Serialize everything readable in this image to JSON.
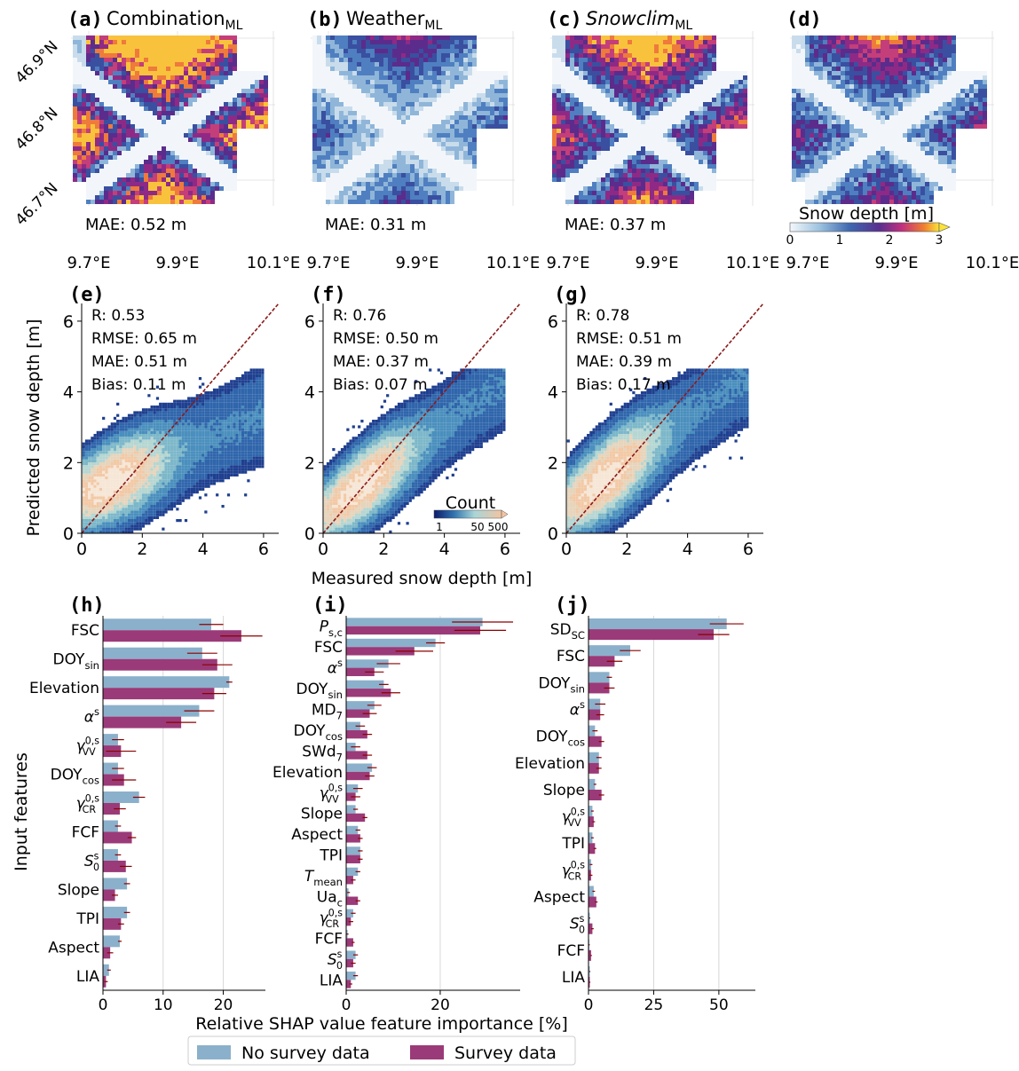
{
  "colors": {
    "no_survey": "#8bb0cb",
    "survey": "#9b3a78",
    "errbar": "#8b0000",
    "identity_line": "#8b1a1a"
  },
  "maps": {
    "lat_ticks": [
      "46.9°N",
      "46.8°N",
      "46.7°N"
    ],
    "lon_ticks": [
      "9.7°E",
      "9.9°E",
      "10.1°E"
    ],
    "colorbar": {
      "label": "Snow depth [m]",
      "ticks": [
        "0",
        "1",
        "2",
        "3"
      ],
      "colormap": "blue-purple-orange-yellow",
      "range": [
        0,
        3
      ]
    },
    "panels": [
      {
        "letter": "(a)",
        "title_main": "Combination",
        "title_sub": "ML",
        "italic": false,
        "mae": "MAE: 0.52 m",
        "intensity": 1.0
      },
      {
        "letter": "(b)",
        "title_main": "Weather",
        "title_sub": "ML",
        "italic": false,
        "mae": "MAE: 0.31 m",
        "intensity": 0.45
      },
      {
        "letter": "(c)",
        "title_main": "Snowclim",
        "title_sub": "ML",
        "italic": true,
        "mae": "MAE: 0.37 m",
        "intensity": 0.8
      },
      {
        "letter": "(d)",
        "title_main": "",
        "title_sub": "",
        "italic": false,
        "mae": "",
        "intensity": 0.6
      }
    ]
  },
  "chart_data": [
    {
      "type": "heatmap",
      "panels": [
        {
          "letter": "(e)",
          "stats": [
            "R: 0.53",
            "RMSE: 0.65 m",
            "MAE: 0.51 m",
            "Bias: 0.11 m"
          ]
        },
        {
          "letter": "(f)",
          "stats": [
            "R: 0.76",
            "RMSE: 0.50 m",
            "MAE: 0.37 m",
            "Bias: 0.07 m"
          ]
        },
        {
          "letter": "(g)",
          "stats": [
            "R: 0.78",
            "RMSE: 0.51 m",
            "MAE: 0.39 m",
            "Bias: 0.17 m"
          ]
        }
      ],
      "xlabel": "Measured snow depth [m]",
      "ylabel": "Predicted snow depth [m]",
      "xlim": [
        0,
        6.5
      ],
      "ylim": [
        0,
        6.5
      ],
      "ticks": [
        0,
        2,
        4,
        6
      ],
      "colorbar": {
        "label": "Count",
        "ticks": [
          "1",
          "50",
          "500"
        ]
      }
    },
    {
      "type": "bar",
      "orientation": "horizontal",
      "xlabel": "Relative SHAP value feature importance [%]",
      "ylabel": "Input features",
      "legend": [
        "No survey data",
        "Survey data"
      ],
      "panels": [
        {
          "letter": "(h)",
          "xlim": [
            0,
            27
          ],
          "xticks": [
            0,
            10,
            20
          ],
          "features": [
            {
              "label": "FSC",
              "no_survey": 18,
              "survey": 23,
              "err_no": 2,
              "err_s": 3.5
            },
            {
              "label": "DOY_sin",
              "no_survey": 16.5,
              "survey": 19,
              "err_no": 2.5,
              "err_s": 2.5
            },
            {
              "label": "Elevation",
              "no_survey": 21,
              "survey": 18.5,
              "err_no": 0.5,
              "err_s": 2
            },
            {
              "label": "α^s",
              "no_survey": 16,
              "survey": 13,
              "err_no": 2.5,
              "err_s": 2.5
            },
            {
              "label": "γ_VV^0,s",
              "no_survey": 2.5,
              "survey": 3,
              "err_no": 1,
              "err_s": 2.5
            },
            {
              "label": "DOY_cos",
              "no_survey": 2.5,
              "survey": 3.5,
              "err_no": 1,
              "err_s": 2
            },
            {
              "label": "γ_CR^0,s",
              "no_survey": 6,
              "survey": 2.8,
              "err_no": 1,
              "err_s": 1
            },
            {
              "label": "FCF",
              "no_survey": 2.5,
              "survey": 4.8,
              "err_no": 0.5,
              "err_s": 0.7
            },
            {
              "label": "S_0^s",
              "no_survey": 2.5,
              "survey": 3.8,
              "err_no": 0.5,
              "err_s": 1
            },
            {
              "label": "Slope",
              "no_survey": 4,
              "survey": 2,
              "err_no": 0.5,
              "err_s": 0.5
            },
            {
              "label": "TPI",
              "no_survey": 4,
              "survey": 3,
              "err_no": 0.5,
              "err_s": 0.5
            },
            {
              "label": "Aspect",
              "no_survey": 2.8,
              "survey": 1.2,
              "err_no": 0.3,
              "err_s": 0.5
            },
            {
              "label": "LIA",
              "no_survey": 1,
              "survey": 0.5,
              "err_no": 0.3,
              "err_s": 0.3
            }
          ]
        },
        {
          "letter": "(i)",
          "xlim": [
            0,
            37
          ],
          "xticks": [
            0,
            20
          ],
          "features": [
            {
              "label": "P_s,c",
              "no_survey": 29,
              "survey": 28.5,
              "err_no": 6.5,
              "err_s": 5.5
            },
            {
              "label": "FSC",
              "no_survey": 19,
              "survey": 14.5,
              "err_no": 2,
              "err_s": 4
            },
            {
              "label": "α^s",
              "no_survey": 9,
              "survey": 6,
              "err_no": 2.5,
              "err_s": 2
            },
            {
              "label": "DOY_sin",
              "no_survey": 8,
              "survey": 9.5,
              "err_no": 1,
              "err_s": 2
            },
            {
              "label": "MD_7",
              "no_survey": 6,
              "survey": 5,
              "err_no": 1.5,
              "err_s": 1.5
            },
            {
              "label": "DOY_cos",
              "no_survey": 3,
              "survey": 4.5,
              "err_no": 1,
              "err_s": 1
            },
            {
              "label": "SWd_7",
              "no_survey": 2,
              "survey": 4.5,
              "err_no": 1,
              "err_s": 1
            },
            {
              "label": "Elevation",
              "no_survey": 5.5,
              "survey": 5,
              "err_no": 1,
              "err_s": 1
            },
            {
              "label": "γ_VV^0,s",
              "no_survey": 2.5,
              "survey": 2,
              "err_no": 1,
              "err_s": 1
            },
            {
              "label": "Slope",
              "no_survey": 2,
              "survey": 4,
              "err_no": 0.5,
              "err_s": 0.5
            },
            {
              "label": "Aspect",
              "no_survey": 2.5,
              "survey": 3,
              "err_no": 0.5,
              "err_s": 0.5
            },
            {
              "label": "TPI",
              "no_survey": 3,
              "survey": 3,
              "err_no": 0.5,
              "err_s": 0.5
            },
            {
              "label": "T_mean",
              "no_survey": 2.5,
              "survey": 1.5,
              "err_no": 0.5,
              "err_s": 0.5
            },
            {
              "label": "Ua_c",
              "no_survey": 0.5,
              "survey": 2.5,
              "err_no": 0.3,
              "err_s": 0.5
            },
            {
              "label": "γ_CR^0,s",
              "no_survey": 1.5,
              "survey": 1,
              "err_no": 0.5,
              "err_s": 0.5
            },
            {
              "label": "FCF",
              "no_survey": 0.3,
              "survey": 1.5,
              "err_no": 0.2,
              "err_s": 0.3
            },
            {
              "label": "S_0^s",
              "no_survey": 2,
              "survey": 1.5,
              "err_no": 0.5,
              "err_s": 0.5
            },
            {
              "label": "LIA",
              "no_survey": 2,
              "survey": 1,
              "err_no": 0.5,
              "err_s": 0.3
            }
          ]
        },
        {
          "letter": "(j)",
          "xlim": [
            0,
            64
          ],
          "xticks": [
            0,
            25,
            50
          ],
          "features": [
            {
              "label": "SD_SC",
              "no_survey": 53,
              "survey": 48,
              "err_no": 6.5,
              "err_s": 6
            },
            {
              "label": "FSC",
              "no_survey": 16,
              "survey": 10,
              "err_no": 4,
              "err_s": 3
            },
            {
              "label": "DOY_sin",
              "no_survey": 8,
              "survey": 8,
              "err_no": 1,
              "err_s": 2
            },
            {
              "label": "α^s",
              "no_survey": 4.5,
              "survey": 4.5,
              "err_no": 2,
              "err_s": 1.5
            },
            {
              "label": "DOY_cos",
              "no_survey": 2.5,
              "survey": 5,
              "err_no": 1,
              "err_s": 1
            },
            {
              "label": "Elevation",
              "no_survey": 4,
              "survey": 4,
              "err_no": 1,
              "err_s": 1
            },
            {
              "label": "Slope",
              "no_survey": 2.5,
              "survey": 5,
              "err_no": 0.5,
              "err_s": 1
            },
            {
              "label": "γ_VV^0,s",
              "no_survey": 1.5,
              "survey": 2,
              "err_no": 0.5,
              "err_s": 0.5
            },
            {
              "label": "TPI",
              "no_survey": 1.5,
              "survey": 2.5,
              "err_no": 0.5,
              "err_s": 0.5
            },
            {
              "label": "γ_CR^0,s",
              "no_survey": 1,
              "survey": 1,
              "err_no": 0.5,
              "err_s": 0.5
            },
            {
              "label": "Aspect",
              "no_survey": 2,
              "survey": 3,
              "err_no": 0.5,
              "err_s": 0.5
            },
            {
              "label": "S_0^s",
              "no_survey": 0.5,
              "survey": 1.5,
              "err_no": 0.2,
              "err_s": 0.5
            },
            {
              "label": "FCF",
              "no_survey": 0.3,
              "survey": 1,
              "err_no": 0.2,
              "err_s": 0.3
            },
            {
              "label": "LIA",
              "no_survey": 0.5,
              "survey": 0.5,
              "err_no": 0.2,
              "err_s": 0.2
            }
          ]
        }
      ]
    }
  ]
}
